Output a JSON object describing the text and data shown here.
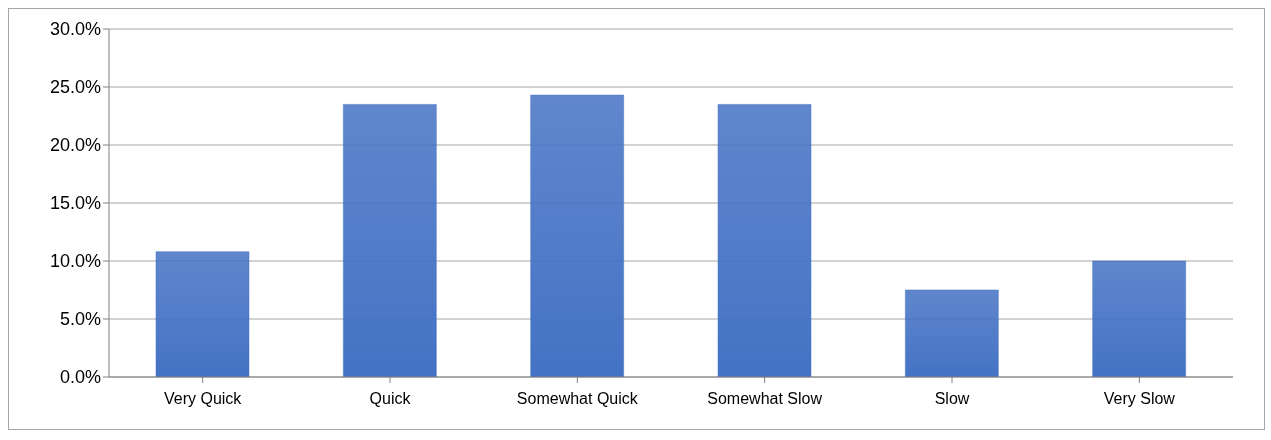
{
  "chart_data": {
    "type": "bar",
    "categories": [
      "Very Quick",
      "Quick",
      "Somewhat Quick",
      "Somewhat Slow",
      "Slow",
      "Very Slow"
    ],
    "values": [
      10.8,
      23.5,
      24.3,
      23.5,
      7.5,
      10.0
    ],
    "color": "#4472c4",
    "ylim": [
      0,
      30
    ],
    "yticks": [
      {
        "value": 0,
        "label": "0.0%"
      },
      {
        "value": 5,
        "label": "5.0%"
      },
      {
        "value": 10,
        "label": "10.0%"
      },
      {
        "value": 15,
        "label": "15.0%"
      },
      {
        "value": 20,
        "label": "20.0%"
      },
      {
        "value": 25,
        "label": "25.0%"
      },
      {
        "value": 30,
        "label": "30.0%"
      }
    ],
    "grid": "y",
    "legend": false
  }
}
